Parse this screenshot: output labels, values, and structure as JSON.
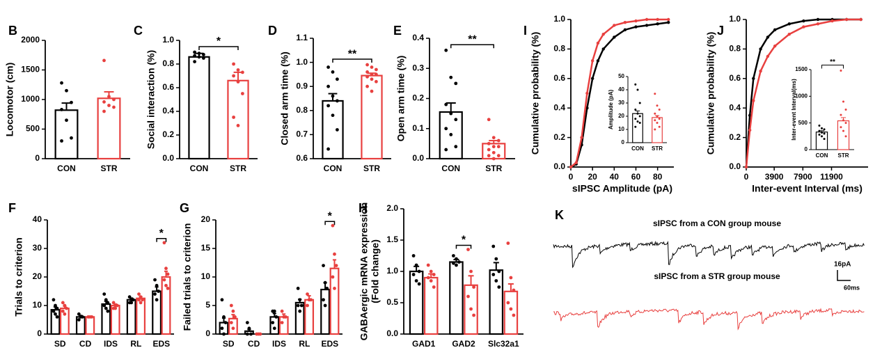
{
  "chart_data": [
    {
      "type": "bar",
      "label": "B",
      "ylabel": "Locomotor (cm)",
      "categories": [
        "CON",
        "STR"
      ],
      "colors": [
        "#000000",
        "#e8403f"
      ],
      "values": [
        820,
        1020
      ],
      "errors": [
        120,
        110
      ],
      "points": [
        [
          1280,
          1150,
          950,
          830,
          650,
          350,
          300
        ],
        [
          1660,
          1050,
          1000,
          960,
          900,
          870,
          800
        ]
      ],
      "ylim": [
        0,
        2000
      ],
      "yticks": [
        0,
        500,
        1000,
        1500,
        2000
      ]
    },
    {
      "type": "bar",
      "label": "C",
      "ylabel": "Social interaction (%)",
      "categories": [
        "CON",
        "STR"
      ],
      "colors": [
        "#000000",
        "#e8403f"
      ],
      "values": [
        0.86,
        0.66
      ],
      "errors": [
        0.03,
        0.07
      ],
      "points": [
        [
          0.9,
          0.89,
          0.88,
          0.87,
          0.86,
          0.85,
          0.82
        ],
        [
          0.8,
          0.75,
          0.73,
          0.7,
          0.65,
          0.55,
          0.35,
          0.28
        ]
      ],
      "significance": "*",
      "ylim": [
        0,
        1
      ],
      "yticks": [
        {
          "value": 0,
          "label": "0.0"
        },
        0.2,
        0.4,
        0.6,
        0.8,
        {
          "value": 1,
          "label": "1.0"
        }
      ]
    },
    {
      "type": "bar",
      "label": "D",
      "ylabel": "Closed arm time (%)",
      "categories": [
        "CON",
        "STR"
      ],
      "colors": [
        "#000000",
        "#e8403f"
      ],
      "values": [
        0.84,
        0.945
      ],
      "errors": [
        0.03,
        0.01
      ],
      "points": [
        [
          0.98,
          0.96,
          0.93,
          0.9,
          0.86,
          0.84,
          0.82,
          0.78,
          0.72,
          0.64
        ],
        [
          0.99,
          0.98,
          0.97,
          0.96,
          0.95,
          0.95,
          0.94,
          0.93,
          0.92,
          0.9,
          0.88
        ]
      ],
      "significance": "**",
      "ylim": [
        0.6,
        1.1
      ],
      "yticks": [
        0.6,
        0.7,
        0.8,
        0.9,
        {
          "value": 1,
          "label": "1.0"
        },
        1.1
      ]
    },
    {
      "type": "bar",
      "label": "E",
      "ylabel": "Open arm time (%)",
      "categories": [
        "CON",
        "STR"
      ],
      "colors": [
        "#000000",
        "#e8403f"
      ],
      "values": [
        0.155,
        0.05
      ],
      "errors": [
        0.03,
        0.01
      ],
      "points": [
        [
          0.36,
          0.27,
          0.25,
          0.18,
          0.15,
          0.13,
          0.1,
          0.08,
          0.04,
          0.03
        ],
        [
          0.13,
          0.07,
          0.06,
          0.05,
          0.04,
          0.04,
          0.03,
          0.02,
          0.01,
          0.01,
          0
        ]
      ],
      "significance": "**",
      "ylim": [
        0,
        0.4
      ],
      "yticks": [
        {
          "value": 0,
          "label": "0.0"
        },
        0.1,
        0.2,
        0.3,
        0.4
      ]
    },
    {
      "type": "bar",
      "label": "F",
      "ylabel": "Trials to criterion",
      "categories": [
        "SD",
        "CD",
        "IDS",
        "RL",
        "EDS"
      ],
      "series": [
        {
          "color": "#000000",
          "values": [
            8.5,
            6,
            10.5,
            12,
            15
          ],
          "errors": [
            1,
            0.5,
            1,
            0.6,
            1.5
          ],
          "points": [
            [
              12,
              10,
              9,
              8,
              7,
              6
            ],
            [
              7,
              6,
              6,
              5
            ],
            [
              14,
              12,
              11,
              10,
              9,
              8
            ],
            [
              13,
              12,
              12,
              11,
              11
            ],
            [
              19,
              17,
              15,
              14,
              12
            ]
          ]
        },
        {
          "color": "#e8403f",
          "values": [
            9,
            6,
            10,
            12.5,
            20
          ],
          "errors": [
            0.8,
            0,
            0.5,
            0.6,
            2
          ],
          "points": [
            [
              11,
              10,
              9,
              8,
              7
            ],
            [
              6,
              6,
              6
            ],
            [
              11,
              10,
              10,
              9,
              9
            ],
            [
              14,
              13,
              12,
              12,
              11
            ],
            [
              32,
              23,
              21,
              19,
              17,
              16
            ]
          ]
        }
      ],
      "significance": [
        null,
        null,
        null,
        null,
        "*"
      ],
      "ylim": [
        0,
        40
      ],
      "yticks": [
        0,
        10,
        20,
        30,
        40
      ]
    },
    {
      "type": "bar",
      "label": "G",
      "ylabel": "Failed trials to criterion",
      "categories": [
        "SD",
        "CD",
        "IDS",
        "RL",
        "EDS"
      ],
      "series": [
        {
          "color": "#000000",
          "values": [
            2,
            0.5,
            3,
            5.5,
            7.8
          ],
          "errors": [
            0.8,
            0.3,
            0.6,
            0.6,
            1.2
          ],
          "points": [
            [
              6,
              3,
              2,
              1,
              0
            ],
            [
              2,
              1,
              0,
              0
            ],
            [
              4,
              4,
              3,
              2,
              1
            ],
            [
              8,
              6,
              5,
              5,
              4
            ],
            [
              12,
              9,
              8,
              6,
              5
            ]
          ]
        },
        {
          "color": "#e8403f",
          "values": [
            2.7,
            0,
            3,
            6,
            11.5
          ],
          "errors": [
            0.7,
            0,
            0.5,
            0.7,
            1.5
          ],
          "points": [
            [
              5,
              4,
              3,
              2,
              1
            ],
            [
              0,
              0,
              0
            ],
            [
              4,
              3,
              3,
              2
            ],
            [
              7,
              6,
              6,
              5
            ],
            [
              19,
              14,
              12,
              10,
              8
            ]
          ]
        }
      ],
      "significance": [
        null,
        null,
        null,
        null,
        "*"
      ],
      "ylim": [
        0,
        20
      ],
      "yticks": [
        0,
        5,
        10,
        15,
        20
      ]
    },
    {
      "type": "bar",
      "label": "H",
      "ylabel": [
        "GABAergic mRNA expression",
        "(Fold change)"
      ],
      "categories": [
        "GAD1",
        "GAD2",
        "Slc32a1"
      ],
      "series": [
        {
          "color": "#000000",
          "values": [
            1,
            1.15,
            1.02
          ],
          "errors": [
            0.08,
            0.04,
            0.12
          ],
          "points": [
            [
              1.25,
              1.1,
              1,
              0.95,
              0.85,
              0.8
            ],
            [
              1.25,
              1.2,
              1.15,
              1.13,
              1.1
            ],
            [
              1.4,
              1.2,
              1,
              0.95,
              0.85,
              0.75
            ]
          ]
        },
        {
          "color": "#e8403f",
          "values": [
            0.9,
            0.78,
            0.68
          ],
          "errors": [
            0.06,
            0.15,
            0.12
          ],
          "points": [
            [
              1.1,
              1,
              0.95,
              0.9,
              0.85,
              0.75
            ],
            [
              1.35,
              1,
              0.75,
              0.6,
              0.4,
              0.3
            ],
            [
              1.45,
              0.9,
              0.7,
              0.5,
              0.4,
              0.3
            ]
          ]
        }
      ],
      "significance": [
        null,
        "*",
        null
      ],
      "ylim": [
        0,
        2
      ],
      "yticks": [
        {
          "value": 0,
          "label": "0.0"
        },
        0.5,
        {
          "value": 1,
          "label": "1.0"
        },
        1.5,
        {
          "value": 2,
          "label": "2.0"
        }
      ]
    },
    {
      "type": "line",
      "label": "I",
      "ylabel": "Cumulative probability (%)",
      "xlabel": "sIPSC Amplitude (pA)",
      "x": [
        0,
        5,
        10,
        15,
        20,
        25,
        30,
        40,
        50,
        60,
        70,
        80,
        90
      ],
      "series": [
        {
          "color": "#000000",
          "values": [
            0,
            0.02,
            0.15,
            0.4,
            0.6,
            0.72,
            0.8,
            0.88,
            0.93,
            0.95,
            0.96,
            0.97,
            0.98
          ]
        },
        {
          "color": "#e8403f",
          "values": [
            0,
            0.03,
            0.2,
            0.5,
            0.72,
            0.84,
            0.9,
            0.96,
            0.98,
            0.99,
            1,
            1,
            1
          ]
        }
      ],
      "xlim": [
        0,
        95
      ],
      "xticks": [
        0,
        20,
        40,
        60,
        80
      ],
      "ylim": [
        0,
        1
      ],
      "yticks": [
        {
          "value": 0,
          "label": "0.0"
        },
        0.2,
        0.4,
        0.6,
        0.8,
        {
          "value": 1,
          "label": "1.0"
        }
      ],
      "inset": {
        "type": "bar",
        "ylabel": "Amplitude (pA)",
        "categories": [
          "CON",
          "STR"
        ],
        "colors": [
          "#000000",
          "#e8403f"
        ],
        "values": [
          22,
          19
        ],
        "errors": [
          2,
          1.5
        ],
        "points": [
          [
            44,
            40,
            30,
            25,
            22,
            20,
            18,
            16,
            15,
            12
          ],
          [
            37,
            28,
            25,
            22,
            20,
            18,
            17,
            15,
            12,
            10
          ]
        ],
        "ylim": [
          0,
          50
        ],
        "yticks": [
          0,
          10,
          20,
          30,
          40,
          50
        ]
      }
    },
    {
      "type": "line",
      "label": "J",
      "ylabel": "Cumulative probability (%)",
      "xlabel": "Inter-event Interval (ms)",
      "x": [
        0,
        500,
        1000,
        2000,
        3000,
        4000,
        6000,
        8000,
        10000,
        12000,
        14000,
        16000
      ],
      "series": [
        {
          "color": "#000000",
          "values": [
            0,
            0.35,
            0.6,
            0.8,
            0.88,
            0.93,
            0.97,
            0.99,
            1,
            1,
            1,
            1
          ]
        },
        {
          "color": "#e8403f",
          "values": [
            0,
            0.25,
            0.45,
            0.65,
            0.75,
            0.82,
            0.9,
            0.95,
            0.97,
            0.99,
            1,
            1
          ]
        }
      ],
      "xlim": [
        0,
        17000
      ],
      "xticks": [
        0,
        3900,
        7900,
        11900
      ],
      "ylim": [
        0,
        1
      ],
      "yticks": [
        {
          "value": 0,
          "label": "0.0"
        },
        0.2,
        0.4,
        0.6,
        0.8,
        {
          "value": 1,
          "label": "1.0"
        }
      ],
      "inset": {
        "type": "bar",
        "ylabel": "Inter-event Interval(ms)",
        "categories": [
          "CON",
          "STR"
        ],
        "colors": [
          "#000000",
          "#e8403f"
        ],
        "values": [
          330,
          540
        ],
        "errors": [
          25,
          60
        ],
        "points": [
          [
            450,
            400,
            380,
            350,
            320,
            300,
            280,
            250,
            200
          ],
          [
            1480,
            900,
            750,
            650,
            550,
            500,
            420,
            350,
            250
          ]
        ],
        "significance": "**",
        "ylim": [
          0,
          1500
        ],
        "yticks": [
          0,
          500,
          1000,
          1500
        ]
      }
    }
  ],
  "trace_panel": {
    "label": "K",
    "con_title": "sIPSC  from a CON group mouse",
    "str_title": "sIPSC  from a STR group mouse",
    "scale_y": "16pA",
    "scale_x": "60ms"
  }
}
